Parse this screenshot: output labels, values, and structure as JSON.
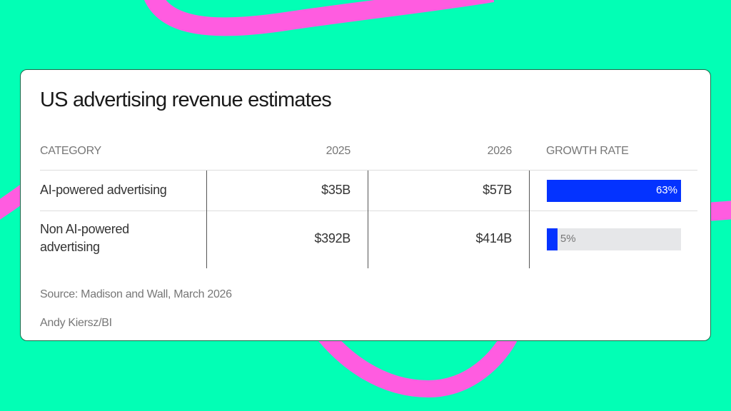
{
  "colors": {
    "background": "#02ffb5",
    "accent_curve": "#ff5ce0",
    "bar": "#0433ff",
    "bar_track": "#e6e7e9"
  },
  "chart_data": {
    "type": "table",
    "title": "US advertising revenue estimates",
    "columns": [
      "CATEGORY",
      "2025",
      "2026",
      "GROWTH RATE"
    ],
    "rows": [
      {
        "category": "AI-powered advertising",
        "y2025": "$35B",
        "y2026": "$57B",
        "growth": 63,
        "growth_label": "63%"
      },
      {
        "category": "Non AI-powered advertising",
        "y2025": "$392B",
        "y2026": "$414B",
        "growth": 5,
        "growth_label": "5%"
      }
    ],
    "growth_max": 63,
    "source": "Source: Madison and Wall, March 2026",
    "credit": "Andy Kiersz/BI"
  }
}
